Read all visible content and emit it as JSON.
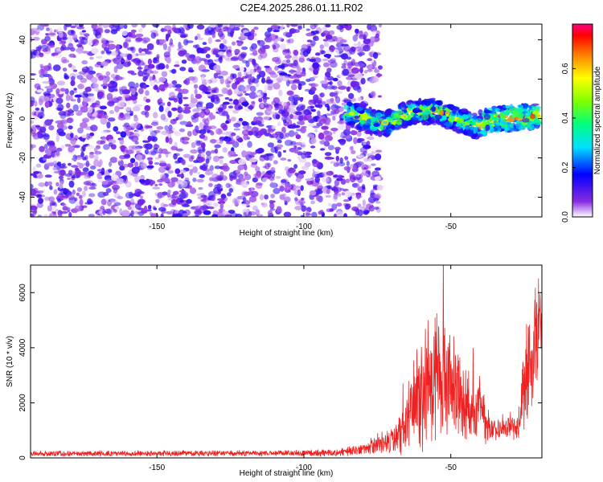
{
  "title": "C2E4.2025.286.01.11.R02",
  "chart_data": [
    {
      "type": "heatmap",
      "xlabel": "Height of straight line (km)",
      "ylabel": "Frequency (Hz)",
      "xlim": [
        -193,
        -19
      ],
      "ylim": [
        -50,
        48
      ],
      "x_ticks": [
        -150,
        -100,
        -50
      ],
      "x_tick_labels": [
        "-150",
        "-100",
        "-50"
      ],
      "y_ticks": [
        -40,
        -20,
        0,
        20,
        40
      ],
      "y_tick_labels": [
        "-40",
        "-20",
        "0",
        "20",
        "40"
      ],
      "noise_region": {
        "x": [
          -193,
          -78
        ],
        "y": [
          -50,
          48
        ],
        "amplitude_range": [
          0.0,
          0.15
        ]
      },
      "signal_track": [
        {
          "x": -86,
          "y": 4
        },
        {
          "x": -80,
          "y": 0
        },
        {
          "x": -72,
          "y": -3
        },
        {
          "x": -65,
          "y": 3
        },
        {
          "x": -55,
          "y": 4
        },
        {
          "x": -48,
          "y": 0
        },
        {
          "x": -42,
          "y": -4
        },
        {
          "x": -35,
          "y": 0
        },
        {
          "x": -28,
          "y": 0
        },
        {
          "x": -20,
          "y": 2
        }
      ],
      "colorbar": {
        "label": "Normalized spectral amplitude",
        "range": [
          0.0,
          0.78
        ],
        "ticks": [
          0.0,
          0.2,
          0.4,
          0.6
        ],
        "tick_labels": [
          "0.0",
          "0.2",
          "0.4",
          "0.6"
        ],
        "colors": [
          "#ffffff",
          "#8a2be2",
          "#0000ff",
          "#00e0ff",
          "#00ff80",
          "#80ff00",
          "#ffff00",
          "#ff8000",
          "#ff0000",
          "#ff0080"
        ]
      }
    },
    {
      "type": "line",
      "xlabel": "Height of straight line (km)",
      "ylabel": "SNR (10 * v/v)",
      "xlim": [
        -193,
        -19
      ],
      "ylim": [
        0,
        7000
      ],
      "x_ticks": [
        -150,
        -100,
        -50
      ],
      "x_tick_labels": [
        "-150",
        "-100",
        "-50"
      ],
      "y_ticks": [
        0,
        2000,
        4000,
        6000
      ],
      "y_tick_labels": [
        "0",
        "2000",
        "4000",
        "6000"
      ],
      "color": "#ee2222",
      "series_envelope": [
        {
          "x": -193,
          "y": 150,
          "spread": 120
        },
        {
          "x": -120,
          "y": 170,
          "spread": 120
        },
        {
          "x": -90,
          "y": 180,
          "spread": 140
        },
        {
          "x": -80,
          "y": 300,
          "spread": 250
        },
        {
          "x": -72,
          "y": 600,
          "spread": 500
        },
        {
          "x": -67,
          "y": 900,
          "spread": 900
        },
        {
          "x": -62,
          "y": 2000,
          "spread": 2000
        },
        {
          "x": -58,
          "y": 2800,
          "spread": 2600
        },
        {
          "x": -53,
          "y": 3000,
          "spread": 3000
        },
        {
          "x": -50,
          "y": 2500,
          "spread": 2500
        },
        {
          "x": -45,
          "y": 1800,
          "spread": 1500
        },
        {
          "x": -40,
          "y": 2000,
          "spread": 1600
        },
        {
          "x": -37,
          "y": 1000,
          "spread": 500
        },
        {
          "x": -32,
          "y": 1100,
          "spread": 500
        },
        {
          "x": -27,
          "y": 1200,
          "spread": 600
        },
        {
          "x": -24,
          "y": 3000,
          "spread": 2500
        },
        {
          "x": -20,
          "y": 5000,
          "spread": 2000
        }
      ]
    }
  ]
}
